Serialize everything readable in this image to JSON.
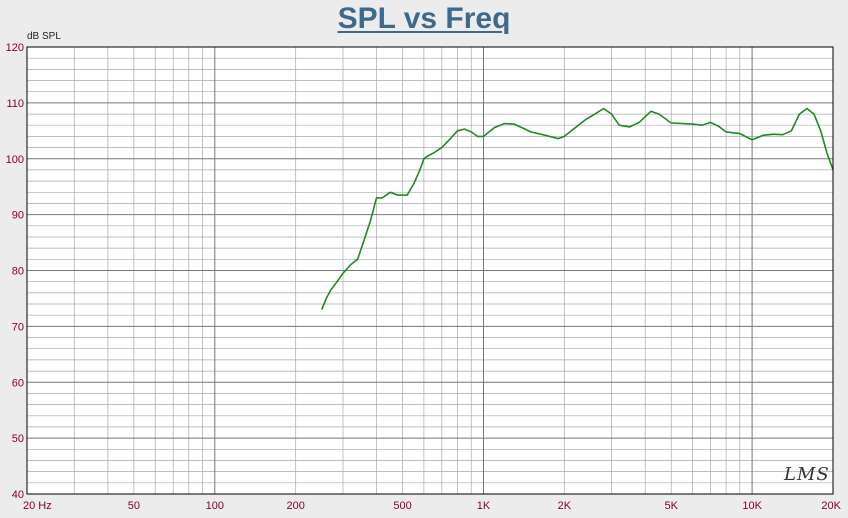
{
  "chart_data": {
    "type": "line",
    "title": "SPL vs Freq",
    "ylabel": "dB SPL",
    "xlabel": "",
    "xscale": "log",
    "xlim": [
      20,
      20000
    ],
    "ylim": [
      40,
      120
    ],
    "grid": true,
    "line_color": "#1f8a1f",
    "title_color": "#3d6a8c",
    "tick_color": "#8b0030",
    "y_ticks": [
      "40",
      "50",
      "60",
      "70",
      "80",
      "90",
      "100",
      "110",
      "120"
    ],
    "x_ticks": [
      {
        "v": 20,
        "label": "20  Hz"
      },
      {
        "v": 50,
        "label": "50"
      },
      {
        "v": 100,
        "label": "100"
      },
      {
        "v": 200,
        "label": "200"
      },
      {
        "v": 500,
        "label": "500"
      },
      {
        "v": 1000,
        "label": "1K"
      },
      {
        "v": 2000,
        "label": "2K"
      },
      {
        "v": 5000,
        "label": "5K"
      },
      {
        "v": 10000,
        "label": "10K"
      },
      {
        "v": 20000,
        "label": "20K"
      }
    ],
    "series": [
      {
        "x": [
          250,
          260,
          270,
          285,
          300,
          320,
          340,
          360,
          380,
          400,
          420,
          450,
          480,
          500,
          520,
          550,
          580,
          600,
          620,
          650,
          700,
          750,
          800,
          850,
          900,
          950,
          1000,
          1050,
          1100,
          1200,
          1300,
          1400,
          1500,
          1700,
          1900,
          2000,
          2200,
          2400,
          2600,
          2800,
          3000,
          3200,
          3500,
          3800,
          4200,
          4500,
          5000,
          5500,
          6000,
          6500,
          7000,
          7500,
          8000,
          9000,
          10000,
          11000,
          12000,
          13000,
          14000,
          15000,
          16000,
          17000,
          18000,
          19000,
          20000
        ],
        "y": [
          73,
          75,
          76.5,
          78,
          79.5,
          81,
          82,
          85.5,
          89,
          93,
          93,
          94,
          93.5,
          93.5,
          93.5,
          95.5,
          98,
          100,
          100.5,
          101,
          102,
          103.5,
          105,
          105.3,
          104.8,
          104,
          104,
          104.8,
          105.6,
          106.3,
          106.2,
          105.5,
          104.8,
          104.2,
          103.6,
          104,
          105.6,
          107,
          108,
          109,
          108,
          106,
          105.7,
          106.5,
          108.5,
          108,
          106.4,
          106.3,
          106.2,
          106,
          106.5,
          105.8,
          104.8,
          104.5,
          103.4,
          104.2,
          104.4,
          104.3,
          105,
          108,
          109,
          108,
          105,
          101,
          98
        ]
      }
    ],
    "watermark": "LMS"
  }
}
